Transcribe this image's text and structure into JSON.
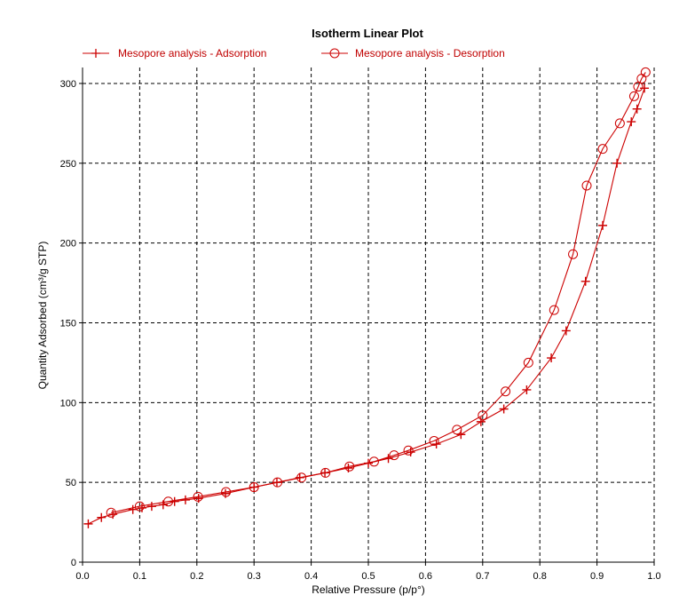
{
  "chart_data": {
    "type": "line",
    "title": "Isotherm Linear Plot",
    "xlabel": "Relative Pressure (p/p°)",
    "ylabel": "Quantity Adsorbed (cm³/g STP)",
    "xlim": [
      0.0,
      1.0
    ],
    "ylim": [
      0,
      310
    ],
    "x_ticks": [
      "0.0",
      "0.1",
      "0.2",
      "0.3",
      "0.4",
      "0.5",
      "0.6",
      "0.7",
      "0.8",
      "0.9",
      "1.0"
    ],
    "y_ticks": [
      "0",
      "50",
      "100",
      "150",
      "200",
      "250",
      "300"
    ],
    "grid": true,
    "legend_position": "top",
    "series": [
      {
        "name": "Mesopore analysis - Adsorption",
        "marker": "plus",
        "color": "#cc0000",
        "x": [
          0.01,
          0.033,
          0.053,
          0.088,
          0.104,
          0.121,
          0.141,
          0.161,
          0.18,
          0.203,
          0.25,
          0.3,
          0.34,
          0.38,
          0.424,
          0.465,
          0.5,
          0.535,
          0.574,
          0.619,
          0.662,
          0.697,
          0.737,
          0.777,
          0.82,
          0.846,
          0.88,
          0.91,
          0.935,
          0.96,
          0.97,
          0.983
        ],
        "y": [
          24,
          28,
          30,
          33,
          34,
          35,
          36,
          38,
          39,
          40,
          43,
          47,
          50,
          53,
          56,
          59,
          62,
          65,
          69,
          74,
          80,
          88,
          96,
          108,
          128,
          145,
          176,
          211,
          250,
          276,
          284,
          297
        ]
      },
      {
        "name": "Mesopore analysis - Desorption",
        "marker": "circle",
        "color": "#cc0000",
        "x": [
          0.985,
          0.978,
          0.972,
          0.965,
          0.94,
          0.91,
          0.882,
          0.858,
          0.825,
          0.78,
          0.74,
          0.7,
          0.655,
          0.615,
          0.57,
          0.545,
          0.51,
          0.467,
          0.425,
          0.383,
          0.341,
          0.3,
          0.251,
          0.202,
          0.15,
          0.1,
          0.05
        ],
        "y": [
          307,
          303,
          298,
          292,
          275,
          259,
          236,
          193,
          158,
          125,
          107,
          92,
          83,
          76,
          70,
          67,
          63,
          60,
          56,
          53,
          50,
          47,
          44,
          41,
          38,
          35,
          31
        ]
      }
    ]
  }
}
